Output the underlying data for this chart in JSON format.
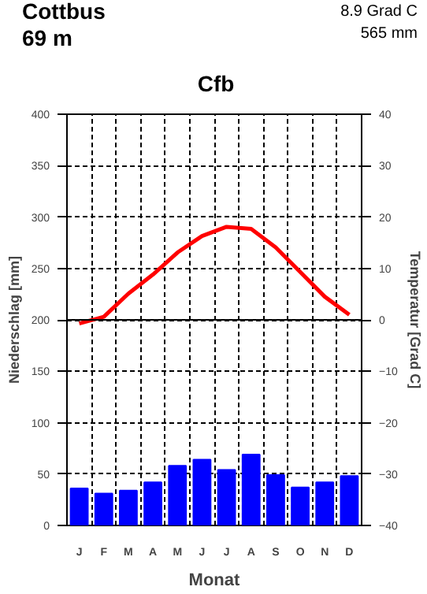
{
  "chart_data": {
    "type": "bar",
    "title": "Cottbus",
    "annotations": [
      "69 m",
      "8.9 Grad C",
      "565 mm",
      "Cfb"
    ],
    "xlabel": "Monat",
    "ylabel": "Niederschlag [mm]",
    "y2label": "Temperatur [Grad C]",
    "categories": [
      "J",
      "F",
      "M",
      "A",
      "M",
      "J",
      "J",
      "A",
      "S",
      "O",
      "N",
      "D"
    ],
    "series": [
      {
        "color": "#0000ff",
        "values": [
          36,
          31,
          34,
          42,
          58,
          64,
          54,
          69,
          49,
          37,
          42,
          48
        ]
      },
      {
        "type": "line",
        "axis": "y2",
        "color": "#ff0000",
        "values": [
          -0.7,
          0.6,
          5.1,
          8.8,
          13.1,
          16.3,
          18.1,
          17.7,
          14.1,
          9.3,
          4.5,
          1.0
        ]
      }
    ],
    "ylim": [
      0,
      400
    ],
    "yticks": [
      0,
      50,
      100,
      150,
      200,
      250,
      300,
      350,
      400
    ],
    "y2lim": [
      -40,
      40
    ],
    "y2ticks": [
      -40,
      -30,
      -20,
      -10,
      0,
      10,
      20,
      30,
      40
    ],
    "ref_lines": [
      {
        "axis": "y2",
        "value": 0,
        "color": "#000000"
      }
    ],
    "grid": true
  }
}
